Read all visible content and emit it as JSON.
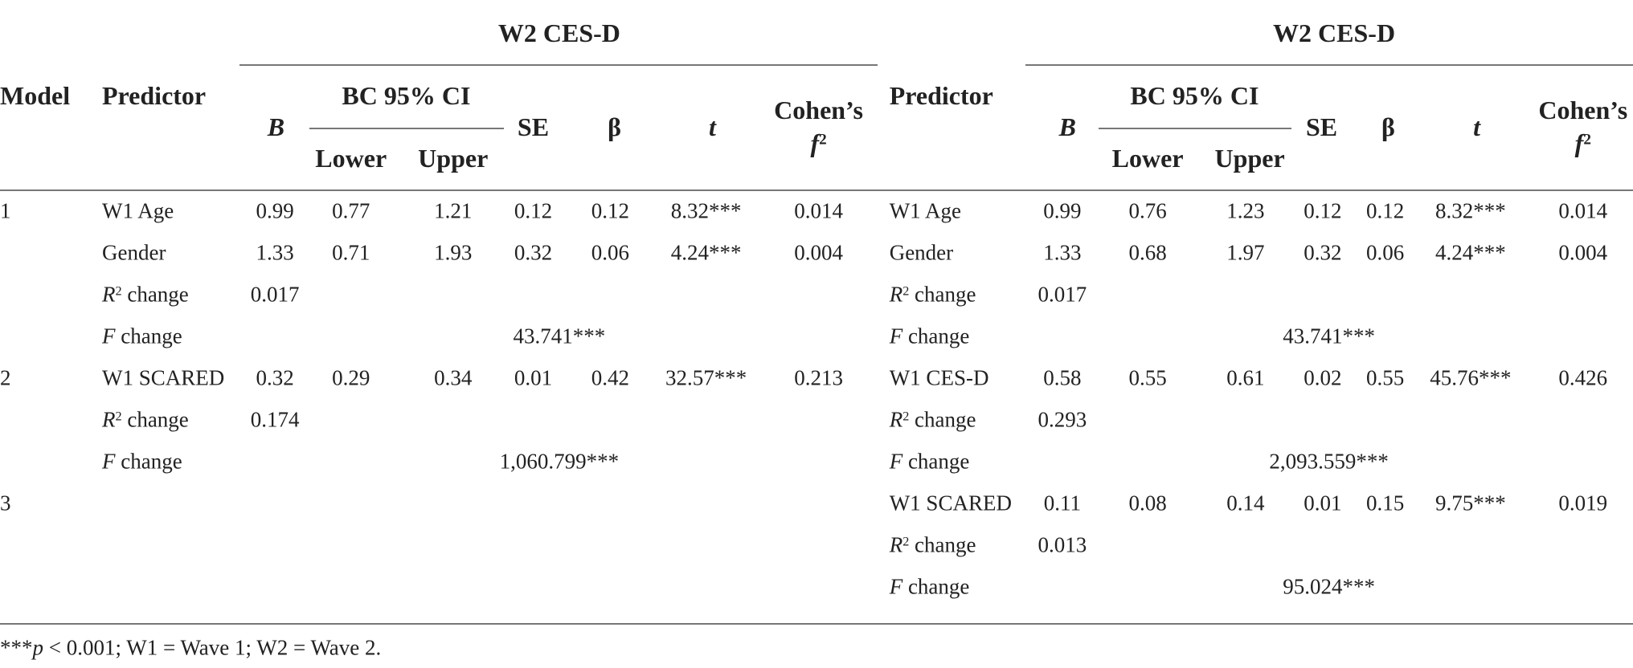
{
  "model_header": "Model",
  "panels": [
    {
      "title": "W2 CES-D",
      "predictor": "Predictor",
      "b": "B",
      "ci": "BC 95% CI",
      "lower": "Lower",
      "upper": "Upper",
      "se": "SE",
      "beta": "β",
      "t": "t",
      "cohen": "Cohen’s",
      "f": "f",
      "f_sup": "2"
    },
    {
      "title": "W2 CES-D",
      "predictor": "Predictor",
      "b": "B",
      "ci": "BC 95% CI",
      "lower": "Lower",
      "upper": "Upper",
      "se": "SE",
      "beta": "β",
      "t": "t",
      "cohen": "Cohen’s",
      "f": "f",
      "f_sup": "2"
    }
  ],
  "rows": [
    {
      "model": "1",
      "left": {
        "predictor": "W1 Age",
        "b": "0.99",
        "lower": "0.77",
        "upper": "1.21",
        "se": "0.12",
        "beta": "0.12",
        "t": "8.32***",
        "f2": "0.014"
      },
      "right": {
        "predictor": "W1 Age",
        "b": "0.99",
        "lower": "0.76",
        "upper": "1.23",
        "se": "0.12",
        "beta": "0.12",
        "t": "8.32***",
        "f2": "0.014"
      }
    },
    {
      "left": {
        "predictor": "Gender",
        "b": "1.33",
        "lower": "0.71",
        "upper": "1.93",
        "se": "0.32",
        "beta": "0.06",
        "t": "4.24***",
        "f2": "0.004"
      },
      "right": {
        "predictor": "Gender",
        "b": "1.33",
        "lower": "0.68",
        "upper": "1.97",
        "se": "0.32",
        "beta": "0.06",
        "t": "4.24***",
        "f2": "0.004"
      }
    },
    {
      "left": {
        "predictor": {
          "italic": "R",
          "sup": "2",
          "text": " change"
        },
        "b": "0.017"
      },
      "right": {
        "predictor": {
          "italic": "R",
          "sup": "2",
          "text": " change"
        },
        "b": "0.017"
      }
    },
    {
      "left": {
        "predictor": {
          "italic": "F",
          "text": " change"
        },
        "f_value": "43.741***"
      },
      "right": {
        "predictor": {
          "italic": "F",
          "text": " change"
        },
        "f_value": "43.741***"
      }
    },
    {
      "model": "2",
      "left": {
        "predictor": "W1 SCARED",
        "b": "0.32",
        "lower": "0.29",
        "upper": "0.34",
        "se": "0.01",
        "beta": "0.42",
        "t": "32.57***",
        "f2": "0.213"
      },
      "right": {
        "predictor": "W1 CES-D",
        "b": "0.58",
        "lower": "0.55",
        "upper": "0.61",
        "se": "0.02",
        "beta": "0.55",
        "t": "45.76***",
        "f2": "0.426"
      }
    },
    {
      "left": {
        "predictor": {
          "italic": "R",
          "sup": "2",
          "text": " change"
        },
        "b": "0.174"
      },
      "right": {
        "predictor": {
          "italic": "R",
          "sup": "2",
          "text": " change"
        },
        "b": "0.293"
      }
    },
    {
      "left": {
        "predictor": {
          "italic": "F",
          "text": " change"
        },
        "f_value": "1,060.799***"
      },
      "right": {
        "predictor": {
          "italic": "F",
          "text": " change"
        },
        "f_value": "2,093.559***"
      }
    },
    {
      "model": "3",
      "right": {
        "predictor": "W1 SCARED",
        "b": "0.11",
        "lower": "0.08",
        "upper": "0.14",
        "se": "0.01",
        "beta": "0.15",
        "t": "9.75***",
        "f2": "0.019"
      }
    },
    {
      "right": {
        "predictor": {
          "italic": "R",
          "sup": "2",
          "text": " change"
        },
        "b": "0.013"
      }
    },
    {
      "right": {
        "predictor": {
          "italic": "F",
          "text": " change"
        },
        "f_value": "95.024***"
      }
    }
  ],
  "footnote": {
    "prefix": "***",
    "italic": "p",
    "text": " < 0.001; W1 = Wave 1; W2 = Wave 2."
  }
}
